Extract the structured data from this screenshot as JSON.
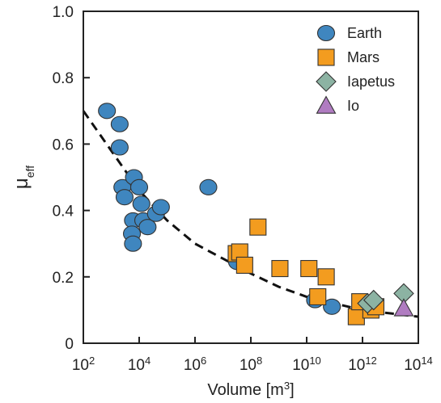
{
  "chart_data": {
    "type": "scatter",
    "xlabel": "Volume [m",
    "xlabel_sup": "3",
    "xlabel_end": "]",
    "ylabel": "μ",
    "ylabel_sub": "eff",
    "x_scale": "log",
    "xlim": [
      100,
      100000000000000
    ],
    "ylim": [
      0,
      1.0
    ],
    "x_ticks": [
      {
        "value": 100,
        "base": "10",
        "exp": "2"
      },
      {
        "value": 10000,
        "base": "10",
        "exp": "4"
      },
      {
        "value": 1000000,
        "base": "10",
        "exp": "6"
      },
      {
        "value": 100000000,
        "base": "10",
        "exp": "8"
      },
      {
        "value": 10000000000,
        "base": "10",
        "exp": "10"
      },
      {
        "value": 1000000000000,
        "base": "10",
        "exp": "12"
      },
      {
        "value": 100000000000000,
        "base": "10",
        "exp": "14"
      }
    ],
    "y_ticks": [
      {
        "value": 0,
        "label": "0"
      },
      {
        "value": 0.2,
        "label": "0.2"
      },
      {
        "value": 0.4,
        "label": "0.4"
      },
      {
        "value": 0.6,
        "label": "0.6"
      },
      {
        "value": 0.8,
        "label": "0.8"
      },
      {
        "value": 1.0,
        "label": "1.0"
      }
    ],
    "grid": false,
    "legend_position": "top-right",
    "series": [
      {
        "name": "Earth",
        "marker": "circle",
        "color": "#3f86bf",
        "points": [
          [
            700,
            0.7
          ],
          [
            2000,
            0.66
          ],
          [
            2000,
            0.59
          ],
          [
            2500,
            0.47
          ],
          [
            3000,
            0.44
          ],
          [
            6500,
            0.5
          ],
          [
            10000,
            0.47
          ],
          [
            12000,
            0.42
          ],
          [
            6000,
            0.37
          ],
          [
            14000,
            0.37
          ],
          [
            5500,
            0.33
          ],
          [
            6000,
            0.3
          ],
          [
            20000,
            0.35
          ],
          [
            40000,
            0.39
          ],
          [
            60000,
            0.41
          ],
          [
            3000000,
            0.47
          ],
          [
            32000000,
            0.245
          ],
          [
            20000000000,
            0.13
          ],
          [
            80000000000,
            0.11
          ]
        ]
      },
      {
        "name": "Mars",
        "marker": "square",
        "color": "#f39c1f",
        "points": [
          [
            30000000,
            0.27
          ],
          [
            40000000,
            0.275
          ],
          [
            60000000,
            0.235
          ],
          [
            180000000,
            0.35
          ],
          [
            1100000000,
            0.225
          ],
          [
            12000000000,
            0.225
          ],
          [
            25000000000,
            0.14
          ],
          [
            50000000000,
            0.2
          ],
          [
            600000000000,
            0.08
          ],
          [
            800000000000,
            0.125
          ],
          [
            2000000000000,
            0.1
          ],
          [
            3000000000000,
            0.11
          ]
        ]
      },
      {
        "name": "Iapetus",
        "marker": "diamond",
        "color": "#8cb3a3",
        "points": [
          [
            1500000000000,
            0.12
          ],
          [
            2500000000000,
            0.13
          ],
          [
            30000000000000,
            0.15
          ]
        ]
      },
      {
        "name": "Io",
        "marker": "triangle",
        "color": "#b07cc1",
        "points": [
          [
            30000000000000,
            0.105
          ]
        ]
      }
    ],
    "fit_curve": {
      "style": "dashed",
      "points": [
        [
          100,
          0.7
        ],
        [
          1000,
          0.58
        ],
        [
          10000,
          0.46
        ],
        [
          100000,
          0.37
        ],
        [
          1000000,
          0.3
        ],
        [
          10000000,
          0.255
        ],
        [
          100000000,
          0.21
        ],
        [
          1000000000,
          0.17
        ],
        [
          10000000000,
          0.14
        ],
        [
          100000000000,
          0.12
        ],
        [
          1000000000000,
          0.1
        ],
        [
          10000000000000,
          0.09
        ],
        [
          100000000000000,
          0.08
        ]
      ]
    }
  }
}
